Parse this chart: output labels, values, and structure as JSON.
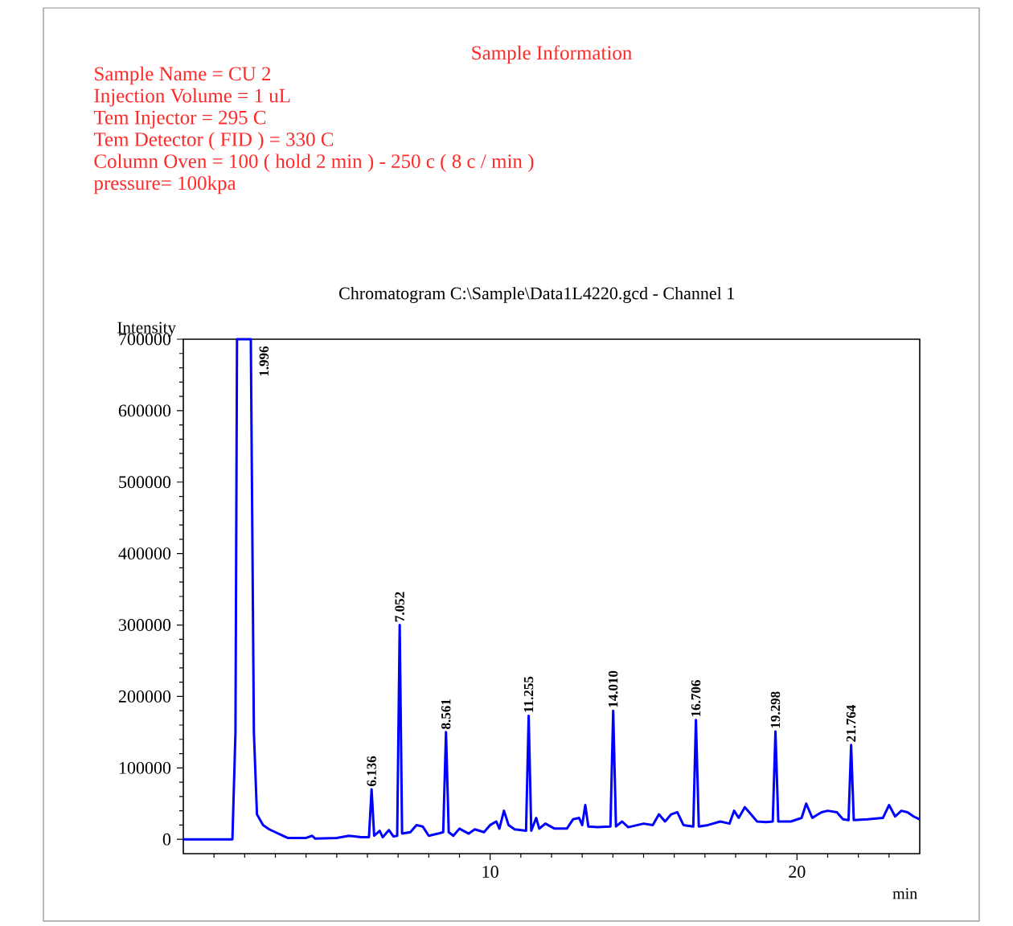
{
  "chart_data": {
    "type": "line",
    "title": "Chromatogram C:\\Sample\\Data1L4220.gcd - Channel 1",
    "subtitle": "Sample Information",
    "xlabel": "min",
    "ylabel": "Intensity",
    "color": "#0000ff",
    "xlim": [
      0,
      24
    ],
    "ylim": [
      -20000,
      700000
    ],
    "xticks": [
      {
        "value": 1,
        "label": null
      },
      {
        "value": 2,
        "label": null
      },
      {
        "value": 3,
        "label": null
      },
      {
        "value": 4,
        "label": null
      },
      {
        "value": 5,
        "label": null
      },
      {
        "value": 6,
        "label": null
      },
      {
        "value": 7,
        "label": null
      },
      {
        "value": 8,
        "label": null
      },
      {
        "value": 9,
        "label": null
      },
      10,
      {
        "value": 11,
        "label": null
      },
      {
        "value": 12,
        "label": null
      },
      {
        "value": 13,
        "label": null
      },
      {
        "value": 14,
        "label": null
      },
      {
        "value": 15,
        "label": null
      },
      {
        "value": 16,
        "label": null
      },
      {
        "value": 17,
        "label": null
      },
      {
        "value": 18,
        "label": null
      },
      {
        "value": 19,
        "label": null
      },
      20,
      {
        "value": 21,
        "label": null
      },
      {
        "value": 22,
        "label": null
      },
      {
        "value": 23,
        "label": null
      }
    ],
    "yticks": [
      0,
      {
        "value": 20000,
        "label": null
      },
      {
        "value": 40000,
        "label": null
      },
      {
        "value": 60000,
        "label": null
      },
      {
        "value": 80000,
        "label": null
      },
      100000,
      {
        "value": 120000,
        "label": null
      },
      {
        "value": 140000,
        "label": null
      },
      {
        "value": 160000,
        "label": null
      },
      {
        "value": 180000,
        "label": null
      },
      200000,
      {
        "value": 220000,
        "label": null
      },
      {
        "value": 240000,
        "label": null
      },
      {
        "value": 260000,
        "label": null
      },
      {
        "value": 280000,
        "label": null
      },
      300000,
      {
        "value": 320000,
        "label": null
      },
      {
        "value": 340000,
        "label": null
      },
      {
        "value": 360000,
        "label": null
      },
      {
        "value": 380000,
        "label": null
      },
      400000,
      {
        "value": 420000,
        "label": null
      },
      {
        "value": 440000,
        "label": null
      },
      {
        "value": 460000,
        "label": null
      },
      {
        "value": 480000,
        "label": null
      },
      500000,
      {
        "value": 520000,
        "label": null
      },
      {
        "value": 540000,
        "label": null
      },
      {
        "value": 560000,
        "label": null
      },
      {
        "value": 580000,
        "label": null
      },
      600000,
      {
        "value": 620000,
        "label": null
      },
      {
        "value": 640000,
        "label": null
      },
      {
        "value": 660000,
        "label": null
      },
      {
        "value": 680000,
        "label": null
      },
      700000
    ],
    "x": [
      0,
      1.6,
      1.7,
      1.75,
      2.2,
      2.3,
      2.4,
      2.6,
      2.8,
      3.2,
      3.4,
      4.0,
      4.2,
      4.3,
      5.0,
      5.4,
      5.8,
      6.05,
      6.136,
      6.22,
      6.4,
      6.5,
      6.7,
      6.85,
      6.97,
      7.052,
      7.13,
      7.4,
      7.6,
      7.8,
      8.0,
      8.3,
      8.47,
      8.561,
      8.65,
      8.8,
      9.0,
      9.3,
      9.5,
      9.8,
      10.0,
      10.2,
      10.3,
      10.45,
      10.6,
      10.8,
      11.17,
      11.255,
      11.34,
      11.5,
      11.6,
      11.8,
      12.1,
      12.5,
      12.7,
      12.9,
      13.0,
      13.1,
      13.2,
      13.5,
      13.92,
      14.01,
      14.1,
      14.3,
      14.5,
      15.0,
      15.3,
      15.5,
      15.7,
      15.9,
      16.1,
      16.3,
      16.62,
      16.706,
      16.8,
      17.1,
      17.5,
      17.8,
      17.95,
      18.1,
      18.3,
      18.5,
      18.7,
      19.0,
      19.21,
      19.298,
      19.39,
      19.8,
      20.15,
      20.3,
      20.5,
      20.8,
      21.0,
      21.3,
      21.5,
      21.68,
      21.764,
      21.85,
      22.3,
      22.8,
      23.0,
      23.2,
      23.4,
      23.6,
      23.8,
      24
    ],
    "values": [
      0,
      0,
      150000,
      700000,
      700000,
      150000,
      35000,
      20000,
      14000,
      6000,
      2000,
      2000,
      5000,
      1000,
      2000,
      5000,
      3000,
      3000,
      70000,
      5000,
      12000,
      3000,
      13000,
      4000,
      5000,
      300000,
      8000,
      10000,
      20000,
      18000,
      5000,
      8000,
      10000,
      150000,
      10000,
      5000,
      15000,
      8000,
      14000,
      10000,
      20000,
      25000,
      15000,
      40000,
      20000,
      14000,
      12000,
      173000,
      12000,
      30000,
      15000,
      22000,
      15000,
      15000,
      28000,
      30000,
      20000,
      48000,
      18000,
      17000,
      18000,
      180000,
      18000,
      25000,
      17000,
      22000,
      20000,
      35000,
      25000,
      35000,
      38000,
      20000,
      18000,
      167000,
      18000,
      20000,
      25000,
      22000,
      40000,
      30000,
      45000,
      35000,
      25000,
      24000,
      25000,
      151000,
      25000,
      25000,
      30000,
      50000,
      30000,
      38000,
      40000,
      38000,
      28000,
      27000,
      132000,
      27000,
      28000,
      30000,
      48000,
      32000,
      40000,
      38000,
      32000,
      28000
    ],
    "annotations": [
      "Sample Name = CU 2",
      "Injection Volume = 1 uL",
      "Tem Injector = 295 C",
      "Tem Detector ( FID ) = 330 C",
      "Column Oven = 100 ( hold 2 min ) - 250 c ( 8 c / min )",
      "pressure= 100kpa",
      {
        "text": "1.996",
        "x": 1.996,
        "y": 700000
      },
      {
        "text": "6.136",
        "x": 6.136,
        "y": 70000
      },
      {
        "text": "7.052",
        "x": 7.052,
        "y": 300000
      },
      {
        "text": "8.561",
        "x": 8.561,
        "y": 150000
      },
      {
        "text": "11.255",
        "x": 11.255,
        "y": 173000
      },
      {
        "text": "14.010",
        "x": 14.01,
        "y": 180000
      },
      {
        "text": "16.706",
        "x": 16.706,
        "y": 167000
      },
      {
        "text": "19.298",
        "x": 19.298,
        "y": 151000
      },
      {
        "text": "21.764",
        "x": 21.764,
        "y": 132000
      }
    ]
  }
}
